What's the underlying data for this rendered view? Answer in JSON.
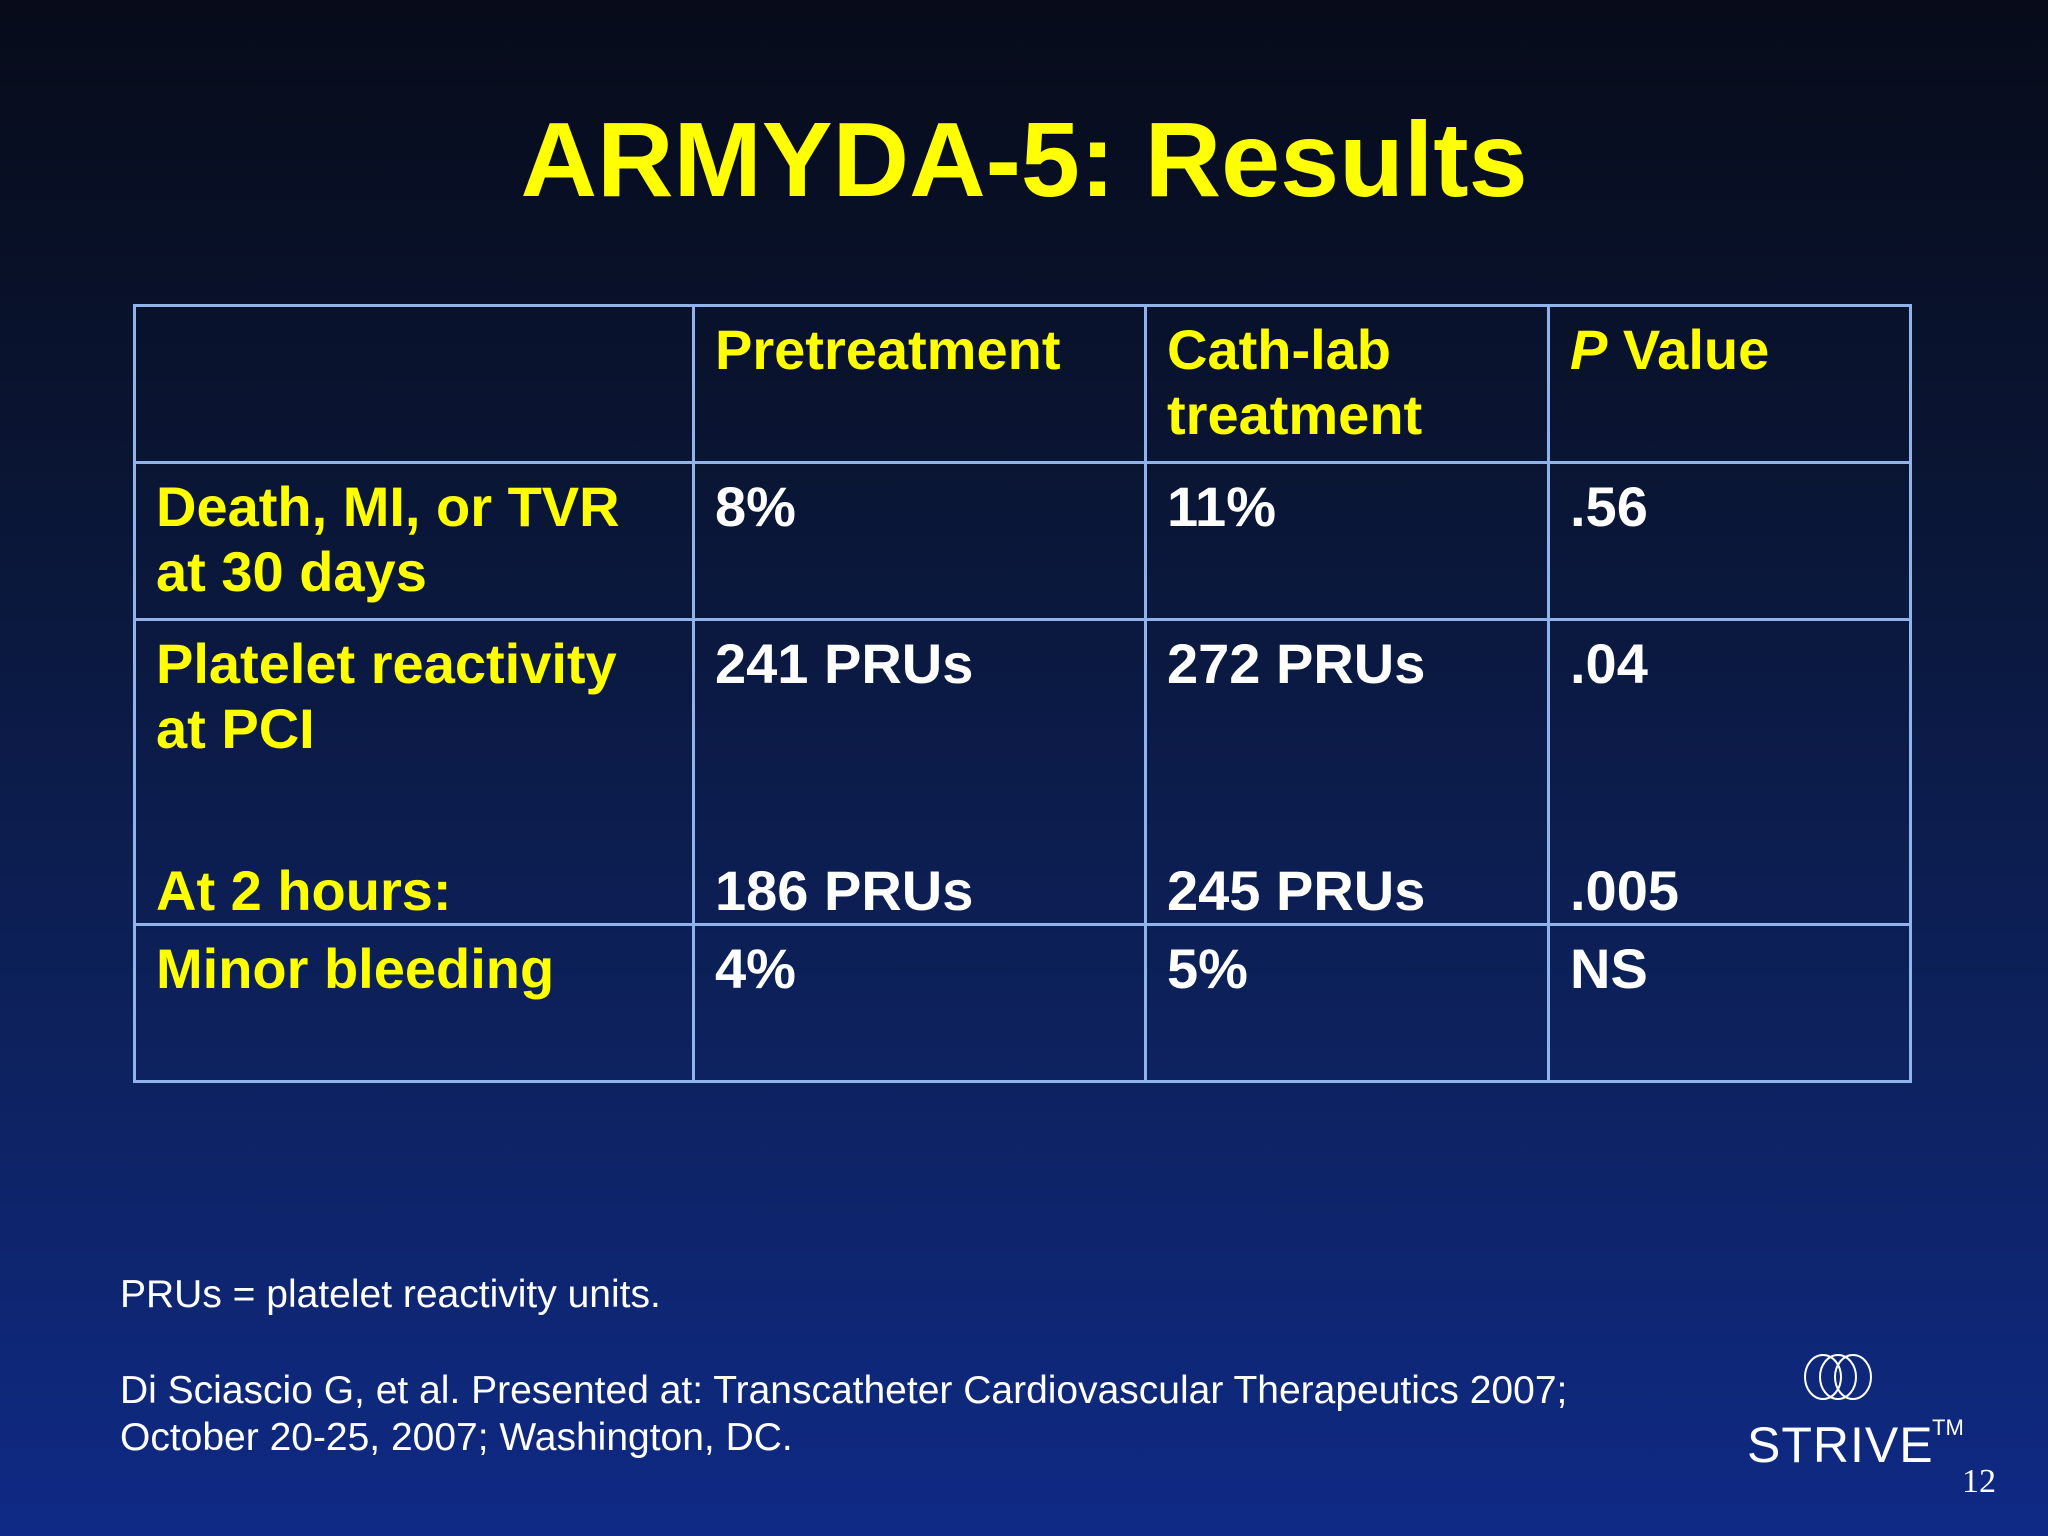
{
  "slide": {
    "title": "ARMYDA-5: Results",
    "page_number": "12"
  },
  "table": {
    "headers": {
      "label": "",
      "pretreatment": "Pretreatment",
      "cath_lab": "Cath-lab treatment",
      "p_value_italic": "P",
      "p_value_rest": " Value"
    },
    "rows": [
      {
        "label": "Death, MI, or TVR at 30 days",
        "pretreatment": "8%",
        "cath_lab": "11%",
        "p_value": ".56"
      },
      {
        "label": "Platelet reactivity at PCI",
        "pretreatment": "241 PRUs",
        "cath_lab": "272 PRUs",
        "p_value": ".04",
        "sub_label": "At 2 hours:",
        "sub_pretreatment": "186 PRUs",
        "sub_cath_lab": "245 PRUs",
        "sub_p_value": ".005"
      },
      {
        "label": "Minor bleeding",
        "pretreatment": "4%",
        "cath_lab": "5%",
        "p_value": "NS"
      }
    ]
  },
  "footnote": "PRUs = platelet reactivity units.",
  "citation": {
    "line1": "Di Sciascio G, et al. Presented at: Transcatheter Cardiovascular Therapeutics 2007;",
    "line2": "October 20-25, 2007; Washington, DC."
  },
  "logo": {
    "text": "STRIVE",
    "trademark": "TM",
    "icon": "three-rings-icon"
  },
  "colors": {
    "title": "#ffff00",
    "row_labels": "#ffff00",
    "values": "#ffffff",
    "grid_lines": "#8fb3ea",
    "background_top": "#070b1a",
    "background_bottom": "#0f2a86"
  }
}
